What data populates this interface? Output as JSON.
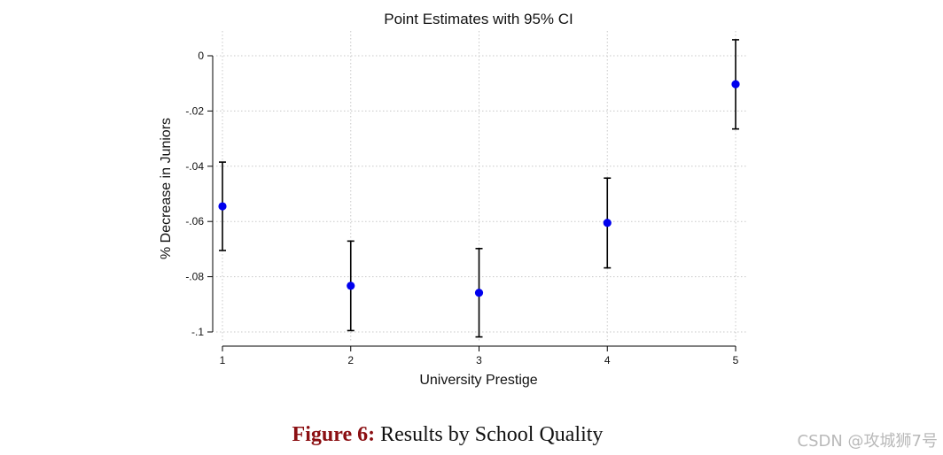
{
  "chart_data": {
    "type": "scatter",
    "title": "Point Estimates with 95% CI",
    "xlabel": "University Prestige",
    "ylabel": "% Decrease in Juniors",
    "xlim": [
      1,
      5
    ],
    "ylim": [
      -0.1,
      0
    ],
    "x_ticks": [
      1,
      2,
      3,
      4,
      5
    ],
    "x_tick_labels": [
      "1",
      "2",
      "3",
      "4",
      "5"
    ],
    "y_ticks": [
      0,
      -0.02,
      -0.04,
      -0.06,
      -0.08,
      -0.1
    ],
    "y_tick_labels": [
      "0",
      "-.02",
      "-.04",
      "-.06",
      "-.08",
      "-.1"
    ],
    "grid": true,
    "points": [
      {
        "x": 1,
        "y": -0.0545,
        "ci_low": -0.0705,
        "ci_high": -0.0385
      },
      {
        "x": 2,
        "y": -0.0833,
        "ci_low": -0.0995,
        "ci_high": -0.0671
      },
      {
        "x": 3,
        "y": -0.0858,
        "ci_low": -0.1018,
        "ci_high": -0.0698
      },
      {
        "x": 4,
        "y": -0.0605,
        "ci_low": -0.0768,
        "ci_high": -0.0443
      },
      {
        "x": 5,
        "y": -0.0103,
        "ci_low": -0.0265,
        "ci_high": 0.0058
      }
    ],
    "colors": {
      "point": "#0000ee",
      "errorbar": "#000000",
      "grid": "#c8c8c8",
      "axis": "#000000"
    }
  },
  "caption": {
    "label": "Figure 6:",
    "text": "Results by School Quality"
  },
  "watermark": "CSDN @攻城狮7号"
}
